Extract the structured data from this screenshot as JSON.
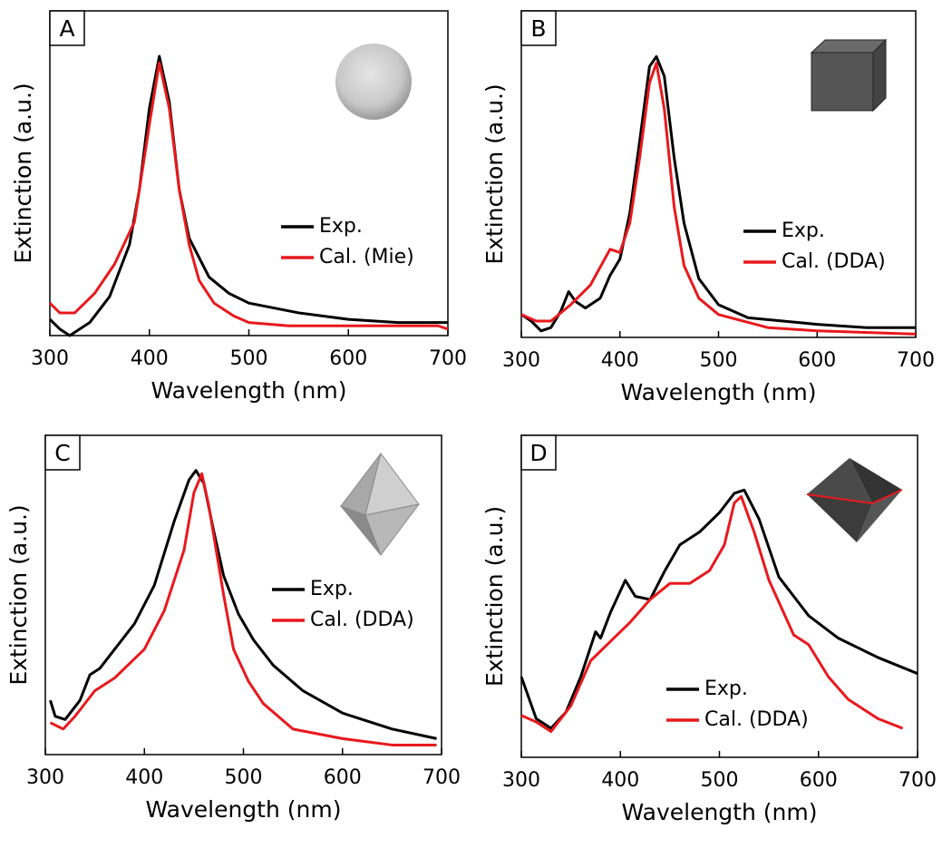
{
  "chart_data": [
    {
      "type": "line",
      "panel_label": "A",
      "x_label": "Wavelength (nm)",
      "y_label": "Extinction (a.u.)",
      "xlim": [
        300,
        700
      ],
      "xticks": [
        300,
        400,
        500,
        600,
        700
      ],
      "ylim": [
        0,
        1
      ],
      "series": [
        {
          "name": "Exp.",
          "color": "#000000",
          "x": [
            300,
            310,
            320,
            340,
            360,
            380,
            390,
            400,
            410,
            420,
            430,
            440,
            460,
            480,
            500,
            550,
            600,
            650,
            700
          ],
          "values": [
            0.05,
            0.02,
            0.0,
            0.04,
            0.12,
            0.28,
            0.45,
            0.7,
            0.86,
            0.72,
            0.45,
            0.3,
            0.18,
            0.13,
            0.1,
            0.07,
            0.05,
            0.04,
            0.04
          ]
        },
        {
          "name": "Cal. (Mie)",
          "color": "#e8191d",
          "x": [
            300,
            310,
            325,
            345,
            365,
            385,
            400,
            410,
            420,
            430,
            440,
            450,
            465,
            485,
            500,
            540,
            600,
            650,
            690,
            700
          ],
          "values": [
            0.1,
            0.07,
            0.07,
            0.13,
            0.22,
            0.35,
            0.65,
            0.84,
            0.7,
            0.45,
            0.28,
            0.17,
            0.1,
            0.06,
            0.04,
            0.03,
            0.03,
            0.03,
            0.03,
            0.02
          ]
        }
      ]
    },
    {
      "type": "line",
      "panel_label": "B",
      "x_label": "Wavelength (nm)",
      "y_label": "Extinction (a.u.)",
      "xlim": [
        300,
        700
      ],
      "xticks": [
        300,
        400,
        500,
        600,
        700
      ],
      "ylim": [
        0,
        1
      ],
      "series": [
        {
          "name": "Exp.",
          "color": "#000000",
          "x": [
            300,
            310,
            320,
            330,
            340,
            348,
            355,
            365,
            380,
            390,
            400,
            410,
            420,
            430,
            437,
            445,
            455,
            465,
            480,
            500,
            530,
            600,
            650,
            700
          ],
          "values": [
            0.07,
            0.05,
            0.02,
            0.03,
            0.08,
            0.14,
            0.11,
            0.09,
            0.12,
            0.19,
            0.24,
            0.38,
            0.6,
            0.83,
            0.86,
            0.8,
            0.55,
            0.35,
            0.18,
            0.1,
            0.06,
            0.04,
            0.03,
            0.03
          ]
        },
        {
          "name": "Cal. (DDA)",
          "color": "#e8191d",
          "x": [
            300,
            315,
            330,
            350,
            370,
            390,
            400,
            410,
            420,
            430,
            437,
            445,
            455,
            465,
            480,
            500,
            550,
            600,
            700
          ],
          "values": [
            0.07,
            0.05,
            0.05,
            0.1,
            0.16,
            0.27,
            0.26,
            0.35,
            0.55,
            0.78,
            0.84,
            0.7,
            0.4,
            0.22,
            0.12,
            0.07,
            0.03,
            0.02,
            0.01
          ]
        }
      ]
    },
    {
      "type": "line",
      "panel_label": "C",
      "x_label": "Wavelength (nm)",
      "y_label": "Extinction (a.u.)",
      "xlim": [
        300,
        700
      ],
      "xticks": [
        300,
        400,
        500,
        600,
        700
      ],
      "ylim": [
        0,
        1
      ],
      "series": [
        {
          "name": "Exp.",
          "color": "#000000",
          "x": [
            305,
            310,
            320,
            335,
            345,
            355,
            370,
            390,
            410,
            430,
            445,
            452,
            460,
            470,
            480,
            495,
            510,
            530,
            560,
            600,
            650,
            695
          ],
          "values": [
            0.17,
            0.12,
            0.11,
            0.17,
            0.25,
            0.27,
            0.33,
            0.41,
            0.53,
            0.73,
            0.86,
            0.89,
            0.85,
            0.7,
            0.56,
            0.44,
            0.36,
            0.28,
            0.2,
            0.13,
            0.08,
            0.05
          ]
        },
        {
          "name": "Cal. (DDA)",
          "color": "#e8191d",
          "x": [
            305,
            318,
            330,
            350,
            370,
            400,
            420,
            440,
            450,
            458,
            465,
            480,
            490,
            505,
            520,
            550,
            600,
            650,
            695
          ],
          "values": [
            0.1,
            0.08,
            0.12,
            0.2,
            0.24,
            0.33,
            0.45,
            0.64,
            0.82,
            0.88,
            0.78,
            0.5,
            0.33,
            0.23,
            0.16,
            0.08,
            0.05,
            0.03,
            0.03
          ]
        }
      ]
    },
    {
      "type": "line",
      "panel_label": "D",
      "x_label": "Wavelength (nm)",
      "y_label": "Extinction (a.u.)",
      "xlim": [
        300,
        700
      ],
      "xticks": [
        300,
        400,
        500,
        600,
        700
      ],
      "ylim": [
        0,
        1
      ],
      "series": [
        {
          "name": "Exp.",
          "color": "#000000",
          "x": [
            300,
            315,
            330,
            345,
            360,
            375,
            380,
            390,
            405,
            415,
            430,
            445,
            460,
            480,
            500,
            515,
            525,
            540,
            560,
            590,
            620,
            660,
            700
          ],
          "values": [
            0.25,
            0.12,
            0.09,
            0.14,
            0.25,
            0.39,
            0.37,
            0.45,
            0.55,
            0.5,
            0.49,
            0.58,
            0.66,
            0.7,
            0.76,
            0.82,
            0.83,
            0.74,
            0.56,
            0.44,
            0.37,
            0.31,
            0.26
          ]
        },
        {
          "name": "Cal. (DDA)",
          "color": "#e8191d",
          "x": [
            300,
            315,
            330,
            350,
            370,
            390,
            410,
            430,
            450,
            470,
            490,
            505,
            515,
            522,
            535,
            550,
            575,
            590,
            610,
            630,
            660,
            685
          ],
          "values": [
            0.13,
            0.11,
            0.08,
            0.16,
            0.3,
            0.36,
            0.42,
            0.49,
            0.54,
            0.54,
            0.58,
            0.66,
            0.79,
            0.81,
            0.7,
            0.55,
            0.38,
            0.35,
            0.25,
            0.18,
            0.12,
            0.09
          ]
        }
      ]
    }
  ]
}
